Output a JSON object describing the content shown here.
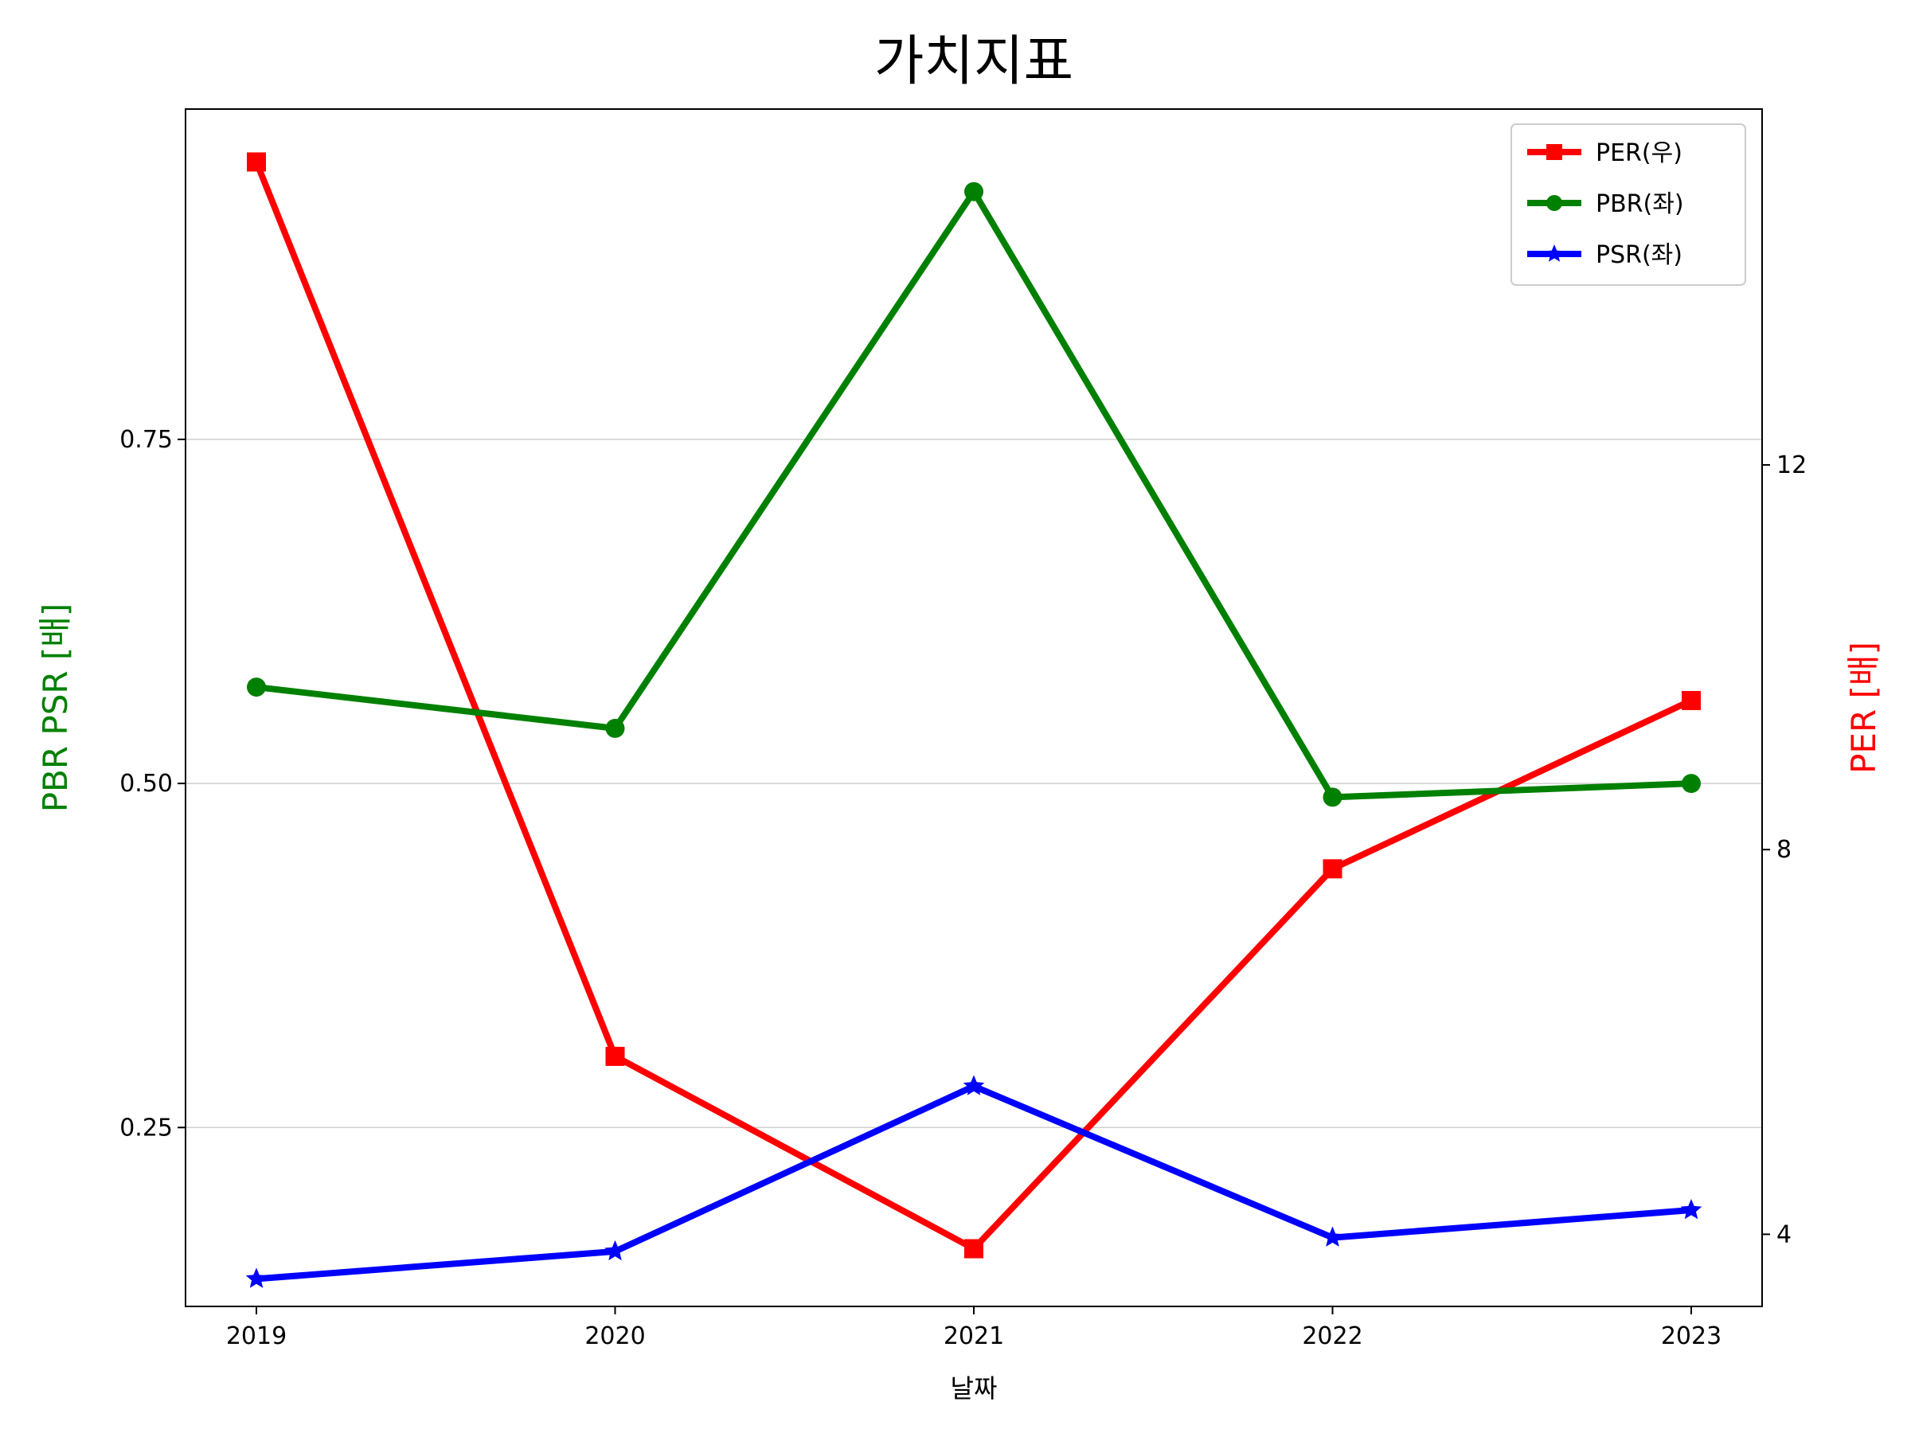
{
  "chart_data": {
    "type": "line",
    "title": "가치지표",
    "xlabel": "날짜",
    "ylabel_left": "PBR PSR [배]",
    "ylabel_right": "PER [배]",
    "categories": [
      "2019",
      "2020",
      "2021",
      "2022",
      "2023"
    ],
    "y_left": {
      "range": [
        0.12,
        0.99
      ],
      "ticks": [
        0.25,
        0.5,
        0.75
      ],
      "tick_labels": [
        "0.25",
        "0.50",
        "0.75"
      ],
      "label_color": "#008000"
    },
    "y_right": {
      "range": [
        3.25,
        15.7
      ],
      "ticks": [
        4,
        8,
        12
      ],
      "tick_labels": [
        "4",
        "8",
        "12"
      ],
      "label_color": "#ff0000"
    },
    "grid": "horizontal-left-axis",
    "legend_position": "top-right",
    "series": [
      {
        "name": "PER(우)",
        "axis": "right",
        "color": "#ff0000",
        "marker": "square",
        "values": [
          15.15,
          5.85,
          3.85,
          7.8,
          9.55
        ]
      },
      {
        "name": "PBR(좌)",
        "axis": "left",
        "color": "#008000",
        "marker": "circle",
        "values": [
          0.57,
          0.54,
          0.93,
          0.49,
          0.5
        ]
      },
      {
        "name": "PSR(좌)",
        "axis": "left",
        "color": "#0000ff",
        "marker": "star",
        "values": [
          0.14,
          0.16,
          0.28,
          0.17,
          0.19
        ]
      }
    ]
  }
}
